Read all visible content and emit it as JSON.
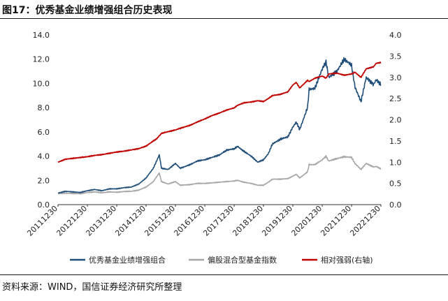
{
  "title": "图17：优秀基金业绩增强组合历史表现",
  "source": "资料来源：WIND，国信证券经济研究所整理",
  "chart_data": {
    "type": "line",
    "title": "",
    "xlabel": "",
    "ylabel": "",
    "y2label": "",
    "x_tick_labels": [
      "20111230",
      "20121230",
      "20131230",
      "20141230",
      "20151230",
      "20161230",
      "20171230",
      "20181230",
      "20191230",
      "20201230",
      "20211230",
      "20221230"
    ],
    "y_left": {
      "min": 0,
      "max": 14,
      "ticks": [
        "0.0",
        "2.0",
        "4.0",
        "6.0",
        "8.0",
        "10.0",
        "12.0",
        "14.0"
      ]
    },
    "y_right": {
      "min": 0,
      "max": 4,
      "ticks": [
        "0.0",
        "0.5",
        "1.0",
        "1.5",
        "2.0",
        "2.5",
        "3.0",
        "3.5",
        "4.0"
      ]
    },
    "grid": false,
    "legend_position": "bottom",
    "x": [
      "2011-12-30",
      "2012-03-30",
      "2012-06-30",
      "2012-09-30",
      "2012-12-30",
      "2013-03-30",
      "2013-06-30",
      "2013-09-30",
      "2013-12-30",
      "2014-03-30",
      "2014-06-30",
      "2014-09-30",
      "2014-12-30",
      "2015-03-30",
      "2015-05-10",
      "2015-06-12",
      "2015-07-10",
      "2015-09-30",
      "2015-12-30",
      "2016-02-28",
      "2016-06-30",
      "2016-09-30",
      "2016-12-30",
      "2017-03-30",
      "2017-06-30",
      "2017-09-30",
      "2017-12-30",
      "2018-02-10",
      "2018-04-30",
      "2018-07-30",
      "2018-10-20",
      "2018-12-30",
      "2019-02-28",
      "2019-04-20",
      "2019-07-30",
      "2019-10-30",
      "2019-12-30",
      "2020-02-10",
      "2020-03-25",
      "2020-06-30",
      "2020-07-20",
      "2020-09-30",
      "2020-12-30",
      "2021-02-15",
      "2021-03-20",
      "2021-06-30",
      "2021-09-30",
      "2021-12-30",
      "2022-02-10",
      "2022-04-26",
      "2022-06-30",
      "2022-09-30",
      "2022-10-31",
      "2022-12-30"
    ],
    "series": [
      {
        "name": "优秀基金业绩增强组合",
        "axis": "left",
        "color": "#1f4e79",
        "values": [
          0.95,
          1.1,
          1.05,
          1.0,
          1.15,
          1.25,
          1.15,
          1.3,
          1.3,
          1.4,
          1.45,
          1.7,
          2.2,
          3.0,
          3.6,
          4.1,
          3.0,
          2.9,
          3.4,
          3.0,
          3.3,
          3.6,
          3.7,
          3.9,
          4.1,
          4.5,
          4.6,
          4.8,
          4.4,
          4.0,
          3.5,
          3.7,
          4.2,
          5.0,
          5.4,
          5.6,
          6.4,
          6.8,
          6.2,
          8.0,
          9.5,
          9.6,
          11.2,
          11.8,
          10.5,
          11.0,
          12.0,
          11.5,
          9.7,
          8.5,
          10.5,
          9.9,
          10.3,
          9.9
        ]
      },
      {
        "name": "偏股混合型基金指数",
        "axis": "left",
        "color": "#a6a6a6",
        "values": [
          0.9,
          0.95,
          0.92,
          0.9,
          1.0,
          1.05,
          0.98,
          1.05,
          1.02,
          1.08,
          1.1,
          1.2,
          1.45,
          1.9,
          2.3,
          2.6,
          1.9,
          1.7,
          1.9,
          1.6,
          1.65,
          1.75,
          1.75,
          1.8,
          1.85,
          1.9,
          1.95,
          2.0,
          1.85,
          1.75,
          1.6,
          1.6,
          1.85,
          2.1,
          2.1,
          2.15,
          2.35,
          2.5,
          2.2,
          2.7,
          3.3,
          3.3,
          3.7,
          4.0,
          3.6,
          3.8,
          3.95,
          3.9,
          3.4,
          2.9,
          3.4,
          3.1,
          3.15,
          2.95
        ]
      },
      {
        "name": "相对强弱(右轴)",
        "axis": "right",
        "color": "#c00000",
        "values": [
          1.0,
          1.07,
          1.09,
          1.11,
          1.13,
          1.16,
          1.18,
          1.21,
          1.24,
          1.26,
          1.29,
          1.32,
          1.38,
          1.5,
          1.55,
          1.62,
          1.68,
          1.72,
          1.76,
          1.8,
          1.87,
          1.95,
          2.02,
          2.1,
          2.16,
          2.23,
          2.28,
          2.34,
          2.4,
          2.42,
          2.45,
          2.43,
          2.5,
          2.57,
          2.6,
          2.66,
          2.82,
          2.88,
          2.75,
          2.93,
          2.9,
          2.98,
          3.03,
          2.98,
          3.08,
          3.1,
          3.05,
          3.08,
          3.12,
          3.0,
          3.2,
          3.25,
          3.33,
          3.35
        ]
      }
    ]
  }
}
